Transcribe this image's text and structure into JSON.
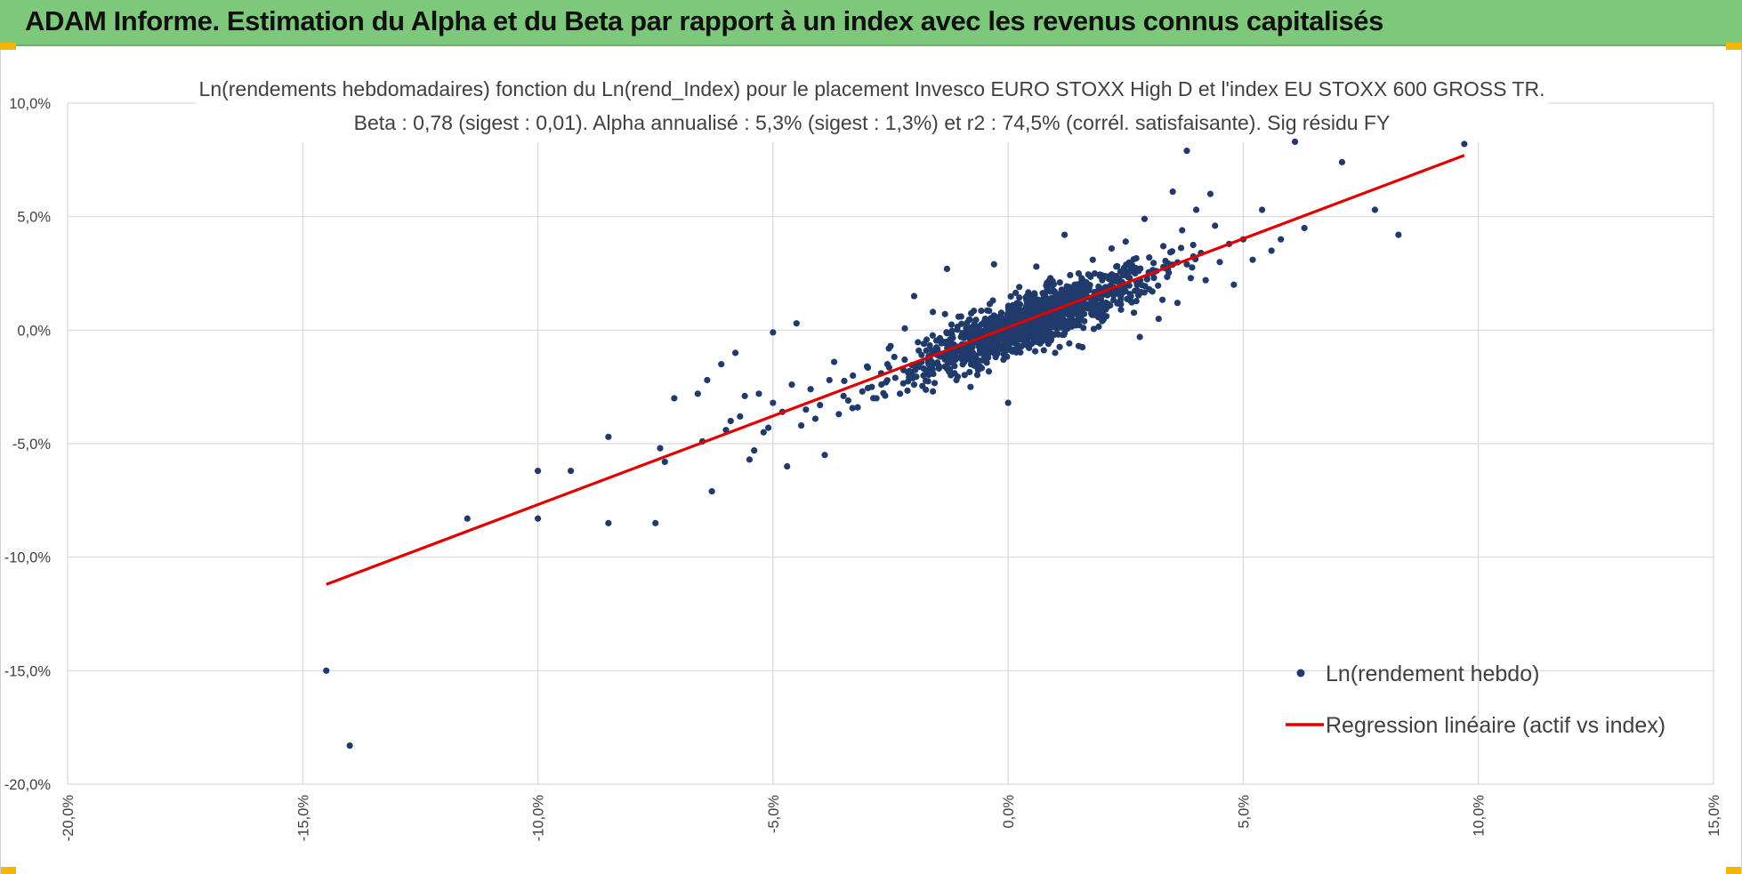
{
  "header": {
    "title": "ADAM Informe. Estimation du Alpha et du Beta par rapport à un index avec les revenus connus capitalisés"
  },
  "colors": {
    "header_bg": "#7dc87a",
    "accent_corner": "#f2b705",
    "scatter": "#1f3a6b",
    "regression": "#e00000",
    "grid": "#d9d9d9"
  },
  "chart_data": {
    "type": "scatter",
    "title_line1": "Ln(rendements hebdomadaires) fonction du Ln(rend_Index) pour le placement Invesco EURO STOXX High D et l'index EU STOXX 600 GROSS TR.",
    "title_line2": "Beta : 0,78 (sigest : 0,01).  Alpha annualisé : 5,3% (sigest : 1,3%) et r2 : 74,5% (corrél. satisfaisante). Sig résidu FY",
    "xlabel": "",
    "ylabel": "",
    "xlim": [
      -20,
      15
    ],
    "ylim": [
      -20,
      10
    ],
    "x_ticks": [
      {
        "value": -20,
        "label": "-20,0%"
      },
      {
        "value": -15,
        "label": "-15,0%"
      },
      {
        "value": -10,
        "label": "-10,0%"
      },
      {
        "value": -5,
        "label": "-5,0%"
      },
      {
        "value": 0,
        "label": "0,0%"
      },
      {
        "value": 5,
        "label": "5,0%"
      },
      {
        "value": 10,
        "label": "10,0%"
      },
      {
        "value": 15,
        "label": "15,0%"
      }
    ],
    "y_ticks": [
      {
        "value": 10,
        "label": "10,0%"
      },
      {
        "value": 5,
        "label": "5,0%"
      },
      {
        "value": 0,
        "label": "0,0%"
      },
      {
        "value": -5,
        "label": "-5,0%"
      },
      {
        "value": -10,
        "label": "-10,0%"
      },
      {
        "value": -15,
        "label": "-15,0%"
      },
      {
        "value": -20,
        "label": "-20,0%"
      }
    ],
    "grid": true,
    "legend_position": "bottom-right",
    "series": [
      {
        "name": "Ln(rendement hebdo)",
        "kind": "scatter",
        "color": "#1f3a6b",
        "points": [
          [
            -14.5,
            -15.0
          ],
          [
            -14.0,
            -18.3
          ],
          [
            -11.5,
            -8.3
          ],
          [
            -10.0,
            -6.2
          ],
          [
            -10.0,
            -8.3
          ],
          [
            -9.3,
            -6.2
          ],
          [
            -8.5,
            -4.7
          ],
          [
            -8.5,
            -8.5
          ],
          [
            -7.5,
            -8.5
          ],
          [
            -7.4,
            -5.2
          ],
          [
            -7.3,
            -5.8
          ],
          [
            -7.1,
            -3.0
          ],
          [
            -6.6,
            -2.8
          ],
          [
            -6.5,
            -4.9
          ],
          [
            -6.4,
            -2.2
          ],
          [
            -6.3,
            -7.1
          ],
          [
            -6.1,
            -1.5
          ],
          [
            -6.0,
            -4.4
          ],
          [
            -5.9,
            -4.0
          ],
          [
            -5.8,
            -1.0
          ],
          [
            -5.7,
            -3.8
          ],
          [
            -5.6,
            -2.9
          ],
          [
            -5.5,
            -5.7
          ],
          [
            -5.4,
            -5.3
          ],
          [
            -5.3,
            -2.8
          ],
          [
            -5.2,
            -4.5
          ],
          [
            -5.1,
            -4.3
          ],
          [
            -5.0,
            -3.2
          ],
          [
            -5.0,
            -0.1
          ],
          [
            -4.8,
            -3.6
          ],
          [
            -4.7,
            -6.0
          ],
          [
            -4.6,
            -2.4
          ],
          [
            -4.5,
            0.3
          ],
          [
            -4.4,
            -4.2
          ],
          [
            -4.3,
            -3.5
          ],
          [
            -4.2,
            -2.6
          ],
          [
            -4.1,
            -3.9
          ],
          [
            -4.0,
            -3.3
          ],
          [
            -3.9,
            -5.5
          ],
          [
            -3.8,
            -2.2
          ],
          [
            -3.7,
            -1.4
          ],
          [
            -3.6,
            -3.7
          ],
          [
            -3.5,
            -2.9
          ],
          [
            -3.4,
            -3.1
          ],
          [
            -3.3,
            -2.0
          ],
          [
            -3.2,
            -3.4
          ],
          [
            -3.1,
            -2.7
          ],
          [
            -3.0,
            -1.6
          ],
          [
            -2.9,
            -2.5
          ],
          [
            -2.8,
            -3.0
          ],
          [
            -2.7,
            -1.9
          ],
          [
            -2.6,
            -2.3
          ],
          [
            -2.5,
            -0.7
          ],
          [
            -2.4,
            -2.1
          ],
          [
            -2.3,
            -2.8
          ],
          [
            -2.2,
            -1.3
          ],
          [
            -2.1,
            -1.8
          ],
          [
            -2.0,
            1.5
          ],
          [
            -2.0,
            -2.4
          ],
          [
            -1.9,
            -0.9
          ],
          [
            -1.8,
            -2.0
          ],
          [
            -1.7,
            -1.4
          ],
          [
            -1.6,
            0.8
          ],
          [
            -1.6,
            -2.7
          ],
          [
            -1.5,
            -1.1
          ],
          [
            -1.4,
            -0.5
          ],
          [
            -1.3,
            2.7
          ],
          [
            -1.3,
            -1.7
          ],
          [
            -1.2,
            -0.8
          ],
          [
            -1.1,
            -2.2
          ],
          [
            -1.0,
            -0.3
          ],
          [
            -1.0,
            0.6
          ],
          [
            -0.9,
            -1.2
          ],
          [
            -0.8,
            -0.6
          ],
          [
            -0.8,
            -2.5
          ],
          [
            -0.7,
            0.2
          ],
          [
            -0.6,
            -0.9
          ],
          [
            -0.6,
            -1.6
          ],
          [
            -0.5,
            0.4
          ],
          [
            -0.5,
            -0.4
          ],
          [
            -0.4,
            -1.0
          ],
          [
            -0.3,
            0.1
          ],
          [
            -0.3,
            2.9
          ],
          [
            -0.2,
            -0.7
          ],
          [
            -0.2,
            -0.2
          ],
          [
            -0.1,
            0.5
          ],
          [
            -0.1,
            -1.3
          ],
          [
            0.0,
            0.0
          ],
          [
            0.0,
            -3.2
          ],
          [
            0.1,
            -0.5
          ],
          [
            0.1,
            1.1
          ],
          [
            0.2,
            0.3
          ],
          [
            0.2,
            -0.8
          ],
          [
            0.3,
            0.7
          ],
          [
            0.3,
            -0.3
          ],
          [
            0.4,
            0.1
          ],
          [
            0.4,
            1.5
          ],
          [
            0.5,
            0.5
          ],
          [
            0.5,
            -0.6
          ],
          [
            0.6,
            0.9
          ],
          [
            0.6,
            2.8
          ],
          [
            0.7,
            0.2
          ],
          [
            0.7,
            1.3
          ],
          [
            0.8,
            -0.4
          ],
          [
            0.8,
            0.8
          ],
          [
            0.9,
            1.7
          ],
          [
            0.9,
            0.4
          ],
          [
            1.0,
            1.0
          ],
          [
            1.0,
            -1.0
          ],
          [
            1.1,
            0.6
          ],
          [
            1.1,
            2.1
          ],
          [
            1.2,
            1.4
          ],
          [
            1.2,
            4.2
          ],
          [
            1.3,
            0.3
          ],
          [
            1.3,
            1.9
          ],
          [
            1.4,
            0.9
          ],
          [
            1.5,
            2.5
          ],
          [
            1.5,
            -0.7
          ],
          [
            1.6,
            1.2
          ],
          [
            1.6,
            0.1
          ],
          [
            1.7,
            1.8
          ],
          [
            1.8,
            3.1
          ],
          [
            1.8,
            0.7
          ],
          [
            1.9,
            1.5
          ],
          [
            2.0,
            2.2
          ],
          [
            2.0,
            0.4
          ],
          [
            2.1,
            1.0
          ],
          [
            2.2,
            3.6
          ],
          [
            2.2,
            1.7
          ],
          [
            2.3,
            2.8
          ],
          [
            2.4,
            0.9
          ],
          [
            2.5,
            2.0
          ],
          [
            2.5,
            3.9
          ],
          [
            2.6,
            1.3
          ],
          [
            2.7,
            2.5
          ],
          [
            2.8,
            -0.3
          ],
          [
            2.9,
            4.9
          ],
          [
            3.0,
            1.8
          ],
          [
            3.0,
            3.2
          ],
          [
            3.1,
            2.3
          ],
          [
            3.2,
            0.5
          ],
          [
            3.3,
            3.7
          ],
          [
            3.4,
            2.7
          ],
          [
            3.5,
            6.1
          ],
          [
            3.6,
            1.2
          ],
          [
            3.7,
            4.4
          ],
          [
            3.8,
            7.9
          ],
          [
            3.8,
            2.9
          ],
          [
            4.0,
            5.3
          ],
          [
            4.1,
            3.4
          ],
          [
            4.2,
            2.2
          ],
          [
            4.3,
            6.0
          ],
          [
            4.4,
            4.6
          ],
          [
            4.5,
            3.0
          ],
          [
            4.7,
            3.8
          ],
          [
            4.8,
            2.0
          ],
          [
            5.0,
            4.0
          ],
          [
            5.2,
            3.1
          ],
          [
            5.4,
            5.3
          ],
          [
            5.6,
            3.5
          ],
          [
            5.8,
            4.0
          ],
          [
            6.1,
            8.3
          ],
          [
            6.3,
            4.5
          ],
          [
            7.1,
            7.4
          ],
          [
            7.8,
            5.3
          ],
          [
            8.3,
            4.2
          ],
          [
            9.7,
            8.2
          ]
        ],
        "density_cluster": {
          "center_x": 0.5,
          "center_y": 0.4,
          "beta": 0.78,
          "count": 1300,
          "sd_x": 1.15,
          "sd_resid": 0.55,
          "seed": 20240517
        }
      },
      {
        "name": "Regression linéaire (actif vs index)",
        "kind": "line",
        "color": "#e00000",
        "x": [
          -14.5,
          9.7
        ],
        "y": [
          -11.2,
          7.7
        ]
      }
    ]
  }
}
